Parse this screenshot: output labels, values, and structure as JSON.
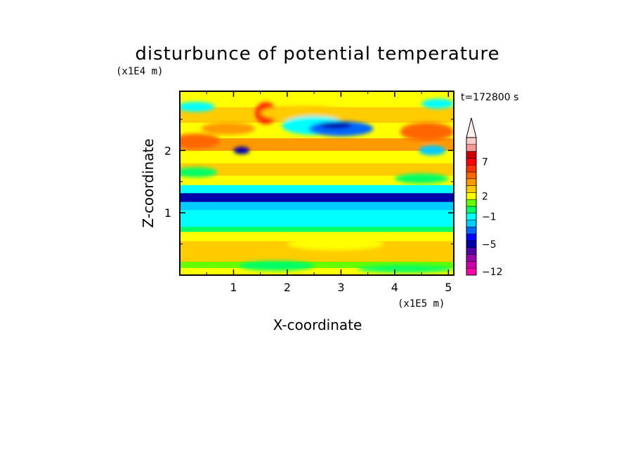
{
  "chart_data": {
    "type": "heatmap",
    "title": "disturbunce of potential temperature",
    "time_label": "t=172800 s",
    "xlabel": "X-coordinate",
    "ylabel": "Z-coordinate",
    "x_unit": "(x1E5 m)",
    "y_unit": "(x1E4 m)",
    "xlim": [
      0,
      5.1
    ],
    "ylim": [
      0,
      2.95
    ],
    "x_ticks": [
      1,
      2,
      3,
      4,
      5
    ],
    "y_ticks": [
      1,
      2
    ],
    "colorbar": {
      "levels": [
        "-12",
        "-10",
        "-8",
        "-6",
        "-5",
        "-4",
        "-3",
        "-2",
        "-1",
        "0",
        "1",
        "2",
        "3",
        "4",
        "5",
        "6",
        "7",
        "8",
        "9",
        "10"
      ],
      "labeled": [
        "-12",
        "-5",
        "-1",
        "2",
        "7"
      ],
      "colors": [
        "#ff00aa",
        "#cc00aa",
        "#9900aa",
        "#5500aa",
        "#0000aa",
        "#0000ff",
        "#0066ff",
        "#00ccff",
        "#00ffff",
        "#00ff66",
        "#66ff00",
        "#ffff00",
        "#ffcc00",
        "#ff9900",
        "#ff6600",
        "#ff3300",
        "#ff0000",
        "#cc0000",
        "#ff9999",
        "#ffcccc"
      ]
    },
    "bands": [
      {
        "z": [
          0.0,
          0.12
        ],
        "value": 2
      },
      {
        "z": [
          0.12,
          0.22
        ],
        "value": 1
      },
      {
        "z": [
          0.22,
          0.55
        ],
        "value": 3
      },
      {
        "z": [
          0.55,
          0.7
        ],
        "value": 2
      },
      {
        "z": [
          0.7,
          0.78
        ],
        "value": 0
      },
      {
        "z": [
          0.78,
          1.05
        ],
        "value": -1
      },
      {
        "z": [
          1.05,
          1.18
        ],
        "value": -2
      },
      {
        "z": [
          1.18,
          1.32
        ],
        "value": -5
      },
      {
        "z": [
          1.32,
          1.45
        ],
        "value": -1
      },
      {
        "z": [
          1.45,
          1.6
        ],
        "value": 2
      },
      {
        "z": [
          1.6,
          1.8
        ],
        "value": 3
      },
      {
        "z": [
          1.8,
          2.0
        ],
        "value": 2
      },
      {
        "z": [
          2.0,
          2.2
        ],
        "value": 4
      },
      {
        "z": [
          2.2,
          2.45
        ],
        "value": 2
      },
      {
        "z": [
          2.45,
          2.7
        ],
        "value": 3
      },
      {
        "z": [
          2.7,
          2.95
        ],
        "value": 2
      }
    ],
    "features": [
      {
        "x": 0.3,
        "z": 2.15,
        "rx": 0.45,
        "rz": 0.12,
        "value": 5
      },
      {
        "x": 0.9,
        "z": 2.35,
        "rx": 0.5,
        "rz": 0.1,
        "value": 4
      },
      {
        "x": 4.6,
        "z": 2.3,
        "rx": 0.5,
        "rz": 0.15,
        "value": 5
      },
      {
        "x": 1.6,
        "z": 2.6,
        "rx": 0.2,
        "rz": 0.18,
        "value": 6
      },
      {
        "x": 2.3,
        "z": 2.6,
        "rx": 0.8,
        "rz": 0.12,
        "value": 3
      },
      {
        "x": 2.5,
        "z": 2.4,
        "rx": 0.6,
        "rz": 0.15,
        "value": -1
      },
      {
        "x": 3.0,
        "z": 2.35,
        "rx": 0.6,
        "rz": 0.12,
        "value": -3
      },
      {
        "x": 2.9,
        "z": 2.4,
        "rx": 0.3,
        "rz": 0.05,
        "value": -5
      },
      {
        "x": 1.15,
        "z": 2.0,
        "rx": 0.15,
        "rz": 0.06,
        "value": -5
      },
      {
        "x": 4.7,
        "z": 2.0,
        "rx": 0.25,
        "rz": 0.08,
        "value": -2
      },
      {
        "x": 0.3,
        "z": 1.65,
        "rx": 0.4,
        "rz": 0.08,
        "value": 0
      },
      {
        "x": 4.5,
        "z": 1.55,
        "rx": 0.5,
        "rz": 0.08,
        "value": 0
      },
      {
        "x": 0.3,
        "z": 2.7,
        "rx": 0.35,
        "rz": 0.08,
        "value": -1
      },
      {
        "x": 4.8,
        "z": 2.75,
        "rx": 0.3,
        "rz": 0.08,
        "value": -1
      },
      {
        "x": 2.9,
        "z": 0.5,
        "rx": 0.9,
        "rz": 0.1,
        "value": 2
      },
      {
        "x": 1.8,
        "z": 0.15,
        "rx": 0.7,
        "rz": 0.08,
        "value": 0
      },
      {
        "x": 4.2,
        "z": 0.1,
        "rx": 0.9,
        "rz": 0.06,
        "value": 0
      }
    ]
  }
}
